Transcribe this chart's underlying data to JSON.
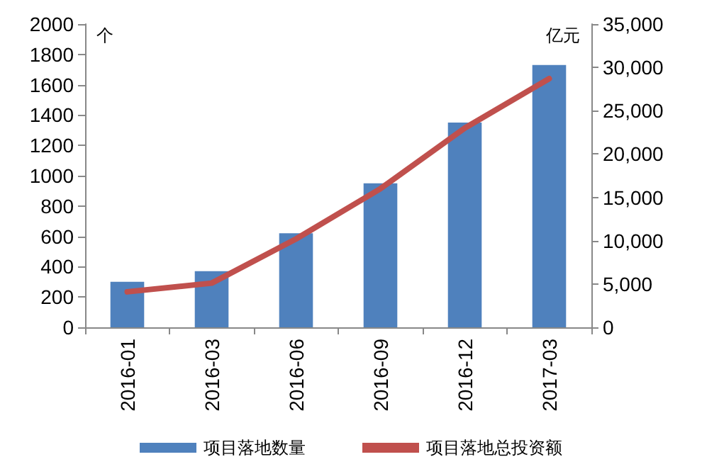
{
  "chart_data": {
    "type": "bar",
    "ylabel": "个",
    "y2label": "亿元",
    "categories": [
      "2016-01",
      "2016-03",
      "2016-06",
      "2016-09",
      "2016-12",
      "2017-03"
    ],
    "series": [
      {
        "name": "项目落地数量",
        "color": "#4f81bd",
        "values": [
          300,
          370,
          620,
          950,
          1350,
          1730
        ]
      },
      {
        "name": "项目落地总投资额",
        "type": "line",
        "axis": "y2",
        "color": "#c0504d",
        "values": [
          4100,
          5100,
          10200,
          16000,
          23000,
          28700
        ]
      }
    ],
    "ylim": [
      0,
      2000
    ],
    "yticks": [
      0,
      200,
      400,
      600,
      800,
      1000,
      1200,
      1400,
      1600,
      1800,
      2000
    ],
    "y2lim": [
      0,
      35000
    ],
    "y2ticks": [
      {
        "value": 0,
        "label": "0"
      },
      {
        "value": 5000,
        "label": "5,000"
      },
      {
        "value": 10000,
        "label": "10,000"
      },
      {
        "value": 15000,
        "label": "15,000"
      },
      {
        "value": 20000,
        "label": "20,000"
      },
      {
        "value": 25000,
        "label": "25,000"
      },
      {
        "value": 30000,
        "label": "30,000"
      },
      {
        "value": 35000,
        "label": "35,000"
      }
    ],
    "grid": false,
    "legend": "bottom",
    "marker": "none"
  }
}
